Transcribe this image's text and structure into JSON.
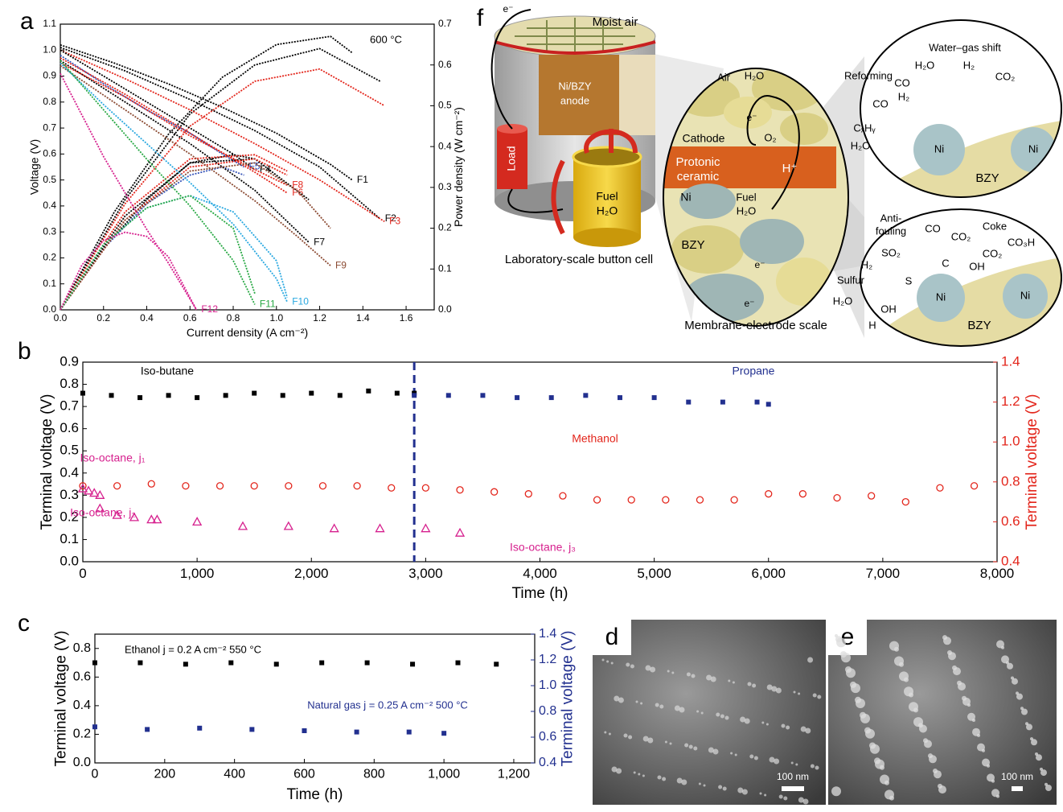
{
  "chart_data": [
    {
      "type": "line",
      "panel": "a",
      "annotation": "600 °C",
      "xlabel": "Current density (A cm⁻²)",
      "ylabel": "Voltage (V)",
      "y2label": "Power density (W cm⁻²)",
      "xlim": [
        0,
        1.73
      ],
      "ylim": [
        0,
        1.1
      ],
      "y2lim": [
        0,
        0.7
      ],
      "xticks": [
        {
          "value": 0,
          "label": "0.0"
        },
        0.2,
        0.4,
        0.6,
        0.8,
        {
          "value": 1,
          "label": "1.0"
        },
        1.2,
        1.4,
        1.6
      ],
      "yticks": [
        {
          "value": 0,
          "label": "0.0"
        },
        0.1,
        0.2,
        0.3,
        0.4,
        0.5,
        0.6,
        0.7,
        0.8,
        0.9,
        {
          "value": 1,
          "label": "1.0"
        },
        1.1
      ],
      "y2ticks": [
        {
          "value": 0,
          "label": "0.0"
        },
        0.1,
        0.2,
        0.3,
        0.4,
        0.5,
        0.6,
        0.7
      ],
      "series": [
        {
          "name": "F1",
          "color": "#000000",
          "x": [
            0,
            0.25,
            0.5,
            0.75,
            1.0,
            1.25,
            1.35
          ],
          "values": [
            1.02,
            0.95,
            0.87,
            0.78,
            0.68,
            0.56,
            0.5
          ],
          "power": [
            0,
            0.24,
            0.43,
            0.57,
            0.65,
            0.67,
            0.63
          ]
        },
        {
          "name": "F2",
          "color": "#000000",
          "x": [
            0,
            0.3,
            0.6,
            0.9,
            1.2,
            1.48
          ],
          "values": [
            1.01,
            0.92,
            0.81,
            0.69,
            0.55,
            0.35
          ],
          "power": [
            0,
            0.27,
            0.48,
            0.6,
            0.64,
            0.56
          ]
        },
        {
          "name": "F3",
          "color": "#e3261c",
          "x": [
            0,
            0.3,
            0.6,
            0.9,
            1.2,
            1.5
          ],
          "values": [
            1.0,
            0.89,
            0.77,
            0.64,
            0.5,
            0.34
          ],
          "power": [
            0,
            0.26,
            0.45,
            0.56,
            0.59,
            0.5
          ]
        },
        {
          "name": "F4",
          "color": "#000000",
          "x": [
            0,
            0.2,
            0.4,
            0.6,
            0.8,
            0.9
          ],
          "values": [
            1.0,
            0.9,
            0.8,
            0.7,
            0.6,
            0.54
          ],
          "power": [
            0,
            0.15,
            0.27,
            0.36,
            0.38,
            0.37
          ]
        },
        {
          "name": "F5",
          "color": "#3553b8",
          "x": [
            0,
            0.2,
            0.4,
            0.6,
            0.75,
            0.85
          ],
          "values": [
            0.98,
            0.87,
            0.77,
            0.68,
            0.6,
            0.55
          ],
          "power": [
            0,
            0.15,
            0.26,
            0.33,
            0.35,
            0.33
          ]
        },
        {
          "name": "F6",
          "color": "#e3261c",
          "x": [
            0,
            0.3,
            0.6,
            0.9,
            1.05
          ],
          "values": [
            0.97,
            0.83,
            0.68,
            0.53,
            0.45
          ],
          "power": [
            0,
            0.24,
            0.37,
            0.38,
            0.34
          ]
        },
        {
          "name": "F7",
          "color": "#000000",
          "x": [
            0,
            0.3,
            0.6,
            0.9,
            1.15
          ],
          "values": [
            0.96,
            0.8,
            0.64,
            0.46,
            0.26
          ],
          "power": [
            0,
            0.23,
            0.36,
            0.37,
            0.27
          ]
        },
        {
          "name": "F8",
          "color": "#e3261c",
          "x": [
            0,
            0.3,
            0.6,
            0.9,
            1.05
          ],
          "values": [
            0.95,
            0.82,
            0.67,
            0.54,
            0.48
          ],
          "power": [
            0,
            0.22,
            0.35,
            0.37,
            0.33
          ]
        },
        {
          "name": "F9",
          "color": "#8b4a32",
          "x": [
            0,
            0.3,
            0.6,
            0.9,
            1.1,
            1.25
          ],
          "values": [
            0.94,
            0.77,
            0.6,
            0.42,
            0.28,
            0.17
          ],
          "power": [
            0,
            0.22,
            0.34,
            0.36,
            0.29,
            0.2
          ]
        },
        {
          "name": "F10",
          "color": "#29a8e0",
          "x": [
            0,
            0.2,
            0.4,
            0.6,
            0.8,
            1.0,
            1.05
          ],
          "values": [
            0.95,
            0.79,
            0.64,
            0.49,
            0.33,
            0.12,
            0.03
          ],
          "power": [
            0,
            0.16,
            0.25,
            0.28,
            0.24,
            0.12,
            0.03
          ]
        },
        {
          "name": "F11",
          "color": "#27a843",
          "x": [
            0,
            0.2,
            0.4,
            0.6,
            0.8,
            0.9
          ],
          "values": [
            0.96,
            0.77,
            0.58,
            0.4,
            0.19,
            0.02
          ],
          "power": [
            0,
            0.16,
            0.25,
            0.28,
            0.2,
            0.04
          ]
        },
        {
          "name": "F12",
          "color": "#d6208e",
          "x": [
            0,
            0.1,
            0.2,
            0.3,
            0.4,
            0.5,
            0.63
          ],
          "values": [
            0.91,
            0.75,
            0.59,
            0.45,
            0.31,
            0.18,
            0.0
          ],
          "power": [
            0,
            0.11,
            0.17,
            0.19,
            0.18,
            0.13,
            0.0
          ]
        }
      ]
    },
    {
      "type": "scatter",
      "panel": "b",
      "xlabel": "Time (h)",
      "ylabel": "Terminal voltage (V)",
      "y2label": "Terminal voltage (V)",
      "xlim": [
        0,
        8000
      ],
      "ylim": [
        0,
        0.9
      ],
      "y2lim": [
        0.4,
        1.4
      ],
      "divider_x": 2900,
      "xticks": [
        0,
        {
          "value": 1000,
          "label": "1,000"
        },
        {
          "value": 2000,
          "label": "2,000"
        },
        {
          "value": 3000,
          "label": "3,000"
        },
        {
          "value": 4000,
          "label": "4,000"
        },
        {
          "value": 5000,
          "label": "5,000"
        },
        {
          "value": 6000,
          "label": "6,000"
        },
        {
          "value": 7000,
          "label": "7,000"
        },
        {
          "value": 8000,
          "label": "8,000"
        }
      ],
      "yticks": [
        {
          "value": 0,
          "label": "0.0"
        },
        0.1,
        0.2,
        0.3,
        0.4,
        0.5,
        0.6,
        0.7,
        0.8,
        0.9
      ],
      "y2ticks": [
        0.4,
        0.6,
        0.8,
        {
          "value": 1,
          "label": "1.0"
        },
        1.2,
        1.4
      ],
      "series": [
        {
          "name": "Iso-butane",
          "color": "#000000",
          "marker": "square",
          "x": [
            0,
            250,
            500,
            750,
            1000,
            1250,
            1500,
            1750,
            2000,
            2250,
            2500,
            2750,
            2900
          ],
          "values": [
            0.76,
            0.75,
            0.74,
            0.75,
            0.74,
            0.75,
            0.76,
            0.75,
            0.76,
            0.75,
            0.77,
            0.76,
            0.76
          ]
        },
        {
          "name": "Propane",
          "color": "#22308f",
          "marker": "square",
          "x": [
            2900,
            3200,
            3500,
            3800,
            4100,
            4400,
            4700,
            5000,
            5300,
            5600,
            5900,
            6000
          ],
          "values": [
            0.75,
            0.75,
            0.75,
            0.74,
            0.74,
            0.75,
            0.74,
            0.74,
            0.72,
            0.72,
            0.72,
            0.71
          ]
        },
        {
          "name": "Methanol",
          "color": "#e3261c",
          "marker": "circle-open",
          "axis": "y2",
          "x": [
            0,
            300,
            600,
            900,
            1200,
            1500,
            1800,
            2100,
            2400,
            2700,
            3000,
            3300,
            3600,
            3900,
            4200,
            4500,
            4800,
            5100,
            5400,
            5700,
            6000,
            6300,
            6600,
            6900,
            7200,
            7500,
            7800
          ],
          "values": [
            0.78,
            0.78,
            0.79,
            0.78,
            0.78,
            0.78,
            0.78,
            0.78,
            0.78,
            0.77,
            0.77,
            0.76,
            0.75,
            0.74,
            0.73,
            0.71,
            0.71,
            0.71,
            0.71,
            0.71,
            0.74,
            0.74,
            0.72,
            0.73,
            0.7,
            0.77,
            0.78
          ]
        },
        {
          "name": "Iso-octane, j₁",
          "color": "#d6208e",
          "marker": "triangle-open",
          "x": [
            0,
            50,
            100,
            150
          ],
          "values": [
            0.33,
            0.32,
            0.31,
            0.3
          ]
        },
        {
          "name": "Iso-octane, j₂",
          "color": "#d6208e",
          "marker": "triangle-open",
          "x": [
            150,
            300,
            450,
            600
          ],
          "values": [
            0.24,
            0.21,
            0.2,
            0.19
          ]
        },
        {
          "name": "Iso-octane, j₃",
          "color": "#d6208e",
          "marker": "triangle-open",
          "x": [
            650,
            1000,
            1400,
            1800,
            2200,
            2600,
            3000,
            3300
          ],
          "values": [
            0.19,
            0.18,
            0.16,
            0.16,
            0.15,
            0.15,
            0.15,
            0.13
          ]
        }
      ]
    },
    {
      "type": "scatter",
      "panel": "c",
      "xlabel": "Time (h)",
      "ylabel": "Terminal voltage (V)",
      "y2label": "Terminal voltage (V)",
      "xlim": [
        0,
        1260
      ],
      "ylim": [
        0,
        0.9
      ],
      "y2lim": [
        0.4,
        1.4
      ],
      "xticks": [
        0,
        200,
        400,
        600,
        800,
        {
          "value": 1000,
          "label": "1,000"
        },
        {
          "value": 1200,
          "label": "1,200"
        }
      ],
      "yticks": [
        {
          "value": 0,
          "label": "0.0"
        },
        0.2,
        0.4,
        0.6,
        0.8
      ],
      "y2ticks": [
        0.4,
        0.6,
        0.8,
        {
          "value": 1,
          "label": "1.0"
        },
        1.2,
        1.4
      ],
      "series": [
        {
          "name": "Ethanol j = 0.2 A cm⁻²   550 °C",
          "color": "#000000",
          "marker": "square",
          "x": [
            0,
            130,
            260,
            390,
            520,
            650,
            780,
            910,
            1040,
            1150
          ],
          "values": [
            0.7,
            0.7,
            0.69,
            0.7,
            0.69,
            0.7,
            0.7,
            0.69,
            0.7,
            0.69
          ]
        },
        {
          "name": "Natural gas j = 0.25 A cm⁻²   500 °C",
          "color": "#22308f",
          "marker": "square",
          "axis": "y2",
          "x": [
            0,
            150,
            300,
            450,
            600,
            750,
            900,
            1000
          ],
          "values": [
            0.68,
            0.66,
            0.67,
            0.66,
            0.65,
            0.64,
            0.64,
            0.63
          ]
        }
      ]
    }
  ],
  "diagram": {
    "panel": "f",
    "labels": [
      "Moist air",
      "e⁻",
      "Load",
      "Ni/BZY",
      "anode",
      "Fuel",
      "H₂O",
      "Laboratory-scale button cell",
      "Air",
      "H₂O",
      "e⁻",
      "Cathode",
      "O₂",
      "Protonic",
      "ceramic",
      "H⁺",
      "Ni",
      "Fuel",
      "H₂O",
      "BZY",
      "e⁻",
      "e⁻",
      "Membrane-electrode scale",
      "Water–gas shift",
      "Reforming",
      "H₂O",
      "CO",
      "H₂",
      "CO₂",
      "CO",
      "H₂",
      "CₓHᵧ",
      "H₂O",
      "Ni",
      "Ni",
      "BZY",
      "Anti-",
      "fouling",
      "CO",
      "CO₂",
      "Coke",
      "CO₃H",
      "SO₂",
      "H₂",
      "C",
      "OH",
      "CO₂",
      "Sulfur",
      "S",
      "H₂O",
      "OH",
      "H",
      "Ni",
      "Ni",
      "BZY"
    ]
  },
  "micrographs": [
    {
      "panel": "d",
      "scale_bar": "100 nm"
    },
    {
      "panel": "e",
      "scale_bar": "100 nm"
    }
  ]
}
